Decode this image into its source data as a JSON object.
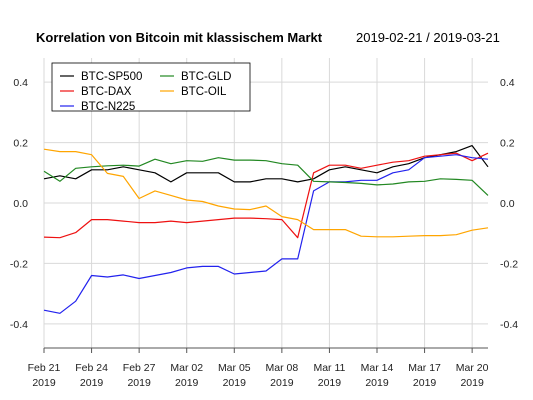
{
  "chart_data": {
    "type": "line",
    "title": "Korrelation von Bitcoin mit klassischem Markt",
    "date_range": "2019-02-21 / 2019-03-21",
    "xlabel": "",
    "ylabel": "",
    "ylim": [
      -0.48,
      0.48
    ],
    "y_ticks": [
      -0.4,
      -0.2,
      0.0,
      0.2,
      0.4
    ],
    "y_tick_labels": [
      "-0.4",
      "-0.2",
      "0.0",
      "0.2",
      "0.4"
    ],
    "grid": true,
    "legend_position": "top-left",
    "x": [
      "2019-02-21",
      "2019-02-22",
      "2019-02-23",
      "2019-02-24",
      "2019-02-25",
      "2019-02-26",
      "2019-02-27",
      "2019-02-28",
      "2019-03-01",
      "2019-03-02",
      "2019-03-03",
      "2019-03-04",
      "2019-03-05",
      "2019-03-06",
      "2019-03-07",
      "2019-03-08",
      "2019-03-09",
      "2019-03-10",
      "2019-03-11",
      "2019-03-12",
      "2019-03-13",
      "2019-03-14",
      "2019-03-15",
      "2019-03-16",
      "2019-03-17",
      "2019-03-18",
      "2019-03-19",
      "2019-03-20",
      "2019-03-21"
    ],
    "x_ticks": [
      {
        "date": "2019-02-21",
        "line1": "Feb 21",
        "line2": "2019"
      },
      {
        "date": "2019-02-24",
        "line1": "Feb 24",
        "line2": "2019"
      },
      {
        "date": "2019-02-27",
        "line1": "Feb 27",
        "line2": "2019"
      },
      {
        "date": "2019-03-02",
        "line1": "Mar 02",
        "line2": "2019"
      },
      {
        "date": "2019-03-05",
        "line1": "Mar 05",
        "line2": "2019"
      },
      {
        "date": "2019-03-08",
        "line1": "Mar 08",
        "line2": "2019"
      },
      {
        "date": "2019-03-11",
        "line1": "Mar 11",
        "line2": "2019"
      },
      {
        "date": "2019-03-14",
        "line1": "Mar 14",
        "line2": "2019"
      },
      {
        "date": "2019-03-17",
        "line1": "Mar 17",
        "line2": "2019"
      },
      {
        "date": "2019-03-20",
        "line1": "Mar 20",
        "line2": "2019"
      }
    ],
    "series": [
      {
        "name": "BTC-SP500",
        "color": "#000000",
        "values": [
          0.08,
          0.09,
          0.08,
          0.11,
          0.11,
          0.12,
          0.11,
          0.1,
          0.07,
          0.1,
          0.1,
          0.1,
          0.07,
          0.07,
          0.08,
          0.08,
          0.07,
          0.08,
          0.11,
          0.12,
          0.11,
          0.1,
          0.12,
          0.13,
          0.15,
          0.16,
          0.17,
          0.19,
          0.12
        ]
      },
      {
        "name": "BTC-DAX",
        "color": "#ee1111",
        "values": [
          -0.113,
          -0.115,
          -0.098,
          -0.055,
          -0.055,
          -0.06,
          -0.065,
          -0.065,
          -0.06,
          -0.065,
          -0.06,
          -0.055,
          -0.05,
          -0.05,
          -0.052,
          -0.055,
          -0.115,
          0.1,
          0.125,
          0.125,
          0.115,
          0.125,
          0.135,
          0.14,
          0.155,
          0.16,
          0.165,
          0.14,
          0.165
        ]
      },
      {
        "name": "BTC-N225",
        "color": "#2222ee",
        "values": [
          -0.355,
          -0.365,
          -0.325,
          -0.24,
          -0.245,
          -0.238,
          -0.25,
          -0.24,
          -0.23,
          -0.215,
          -0.21,
          -0.21,
          -0.235,
          -0.23,
          -0.225,
          -0.185,
          -0.185,
          0.04,
          0.07,
          0.07,
          0.075,
          0.075,
          0.1,
          0.11,
          0.15,
          0.155,
          0.16,
          0.15,
          0.145
        ]
      },
      {
        "name": "BTC-GLD",
        "color": "#228822",
        "values": [
          0.105,
          0.072,
          0.115,
          0.12,
          0.123,
          0.125,
          0.122,
          0.145,
          0.13,
          0.14,
          0.138,
          0.15,
          0.142,
          0.142,
          0.14,
          0.13,
          0.125,
          0.072,
          0.07,
          0.068,
          0.065,
          0.06,
          0.063,
          0.07,
          0.072,
          0.08,
          0.078,
          0.075,
          0.025
        ]
      },
      {
        "name": "BTC-OIL",
        "color": "#ffa500",
        "values": [
          0.178,
          0.17,
          0.17,
          0.16,
          0.098,
          0.088,
          0.015,
          0.04,
          0.025,
          0.01,
          0.005,
          -0.01,
          -0.02,
          -0.022,
          -0.01,
          -0.045,
          -0.055,
          -0.088,
          -0.088,
          -0.088,
          -0.11,
          -0.112,
          -0.112,
          -0.11,
          -0.108,
          -0.108,
          -0.105,
          -0.09,
          -0.082
        ]
      }
    ]
  }
}
